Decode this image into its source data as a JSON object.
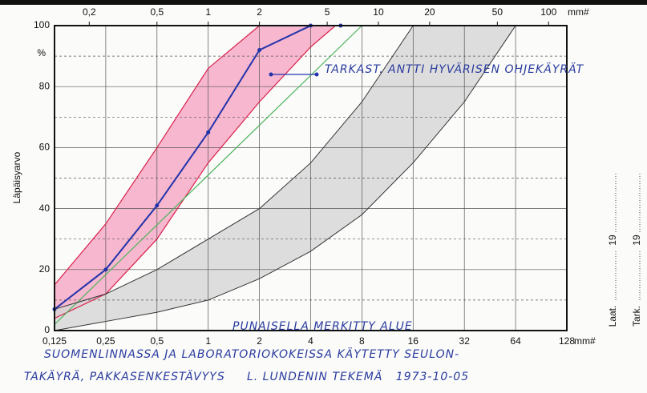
{
  "chart_data": {
    "type": "line",
    "y_label": "Läpäisyarvo",
    "y_unit": "%",
    "xlog": true,
    "xlim": [
      0.125,
      128
    ],
    "ylim": [
      0,
      100
    ],
    "xticks": [
      {
        "value": 0.125,
        "label": "0,125"
      },
      {
        "value": 0.25,
        "label": "0,25"
      },
      {
        "value": 0.5,
        "label": "0,5"
      },
      1,
      2,
      4,
      8,
      16,
      32,
      64,
      128
    ],
    "x_unit": "mm#",
    "x2ticks": [
      {
        "value": 0.2,
        "label": "0,2"
      },
      {
        "value": 0.5,
        "label": "0,5"
      },
      1,
      2,
      5,
      10,
      20,
      50,
      100
    ],
    "x2_unit": "mm#",
    "yticks": [
      0,
      20,
      40,
      60,
      80,
      100
    ],
    "ygrid": [
      10,
      30,
      50,
      70,
      90
    ],
    "grid": true,
    "series": [
      {
        "color": "#2233aa",
        "width": 2,
        "markers": true,
        "x": [
          0.125,
          0.25,
          0.5,
          1,
          2,
          4,
          6
        ],
        "values": [
          7,
          20,
          41,
          65,
          92,
          100,
          100
        ]
      },
      {
        "color": "#d8204a",
        "width": 1.2,
        "fill": "#f6a6c4",
        "x": [
          0.125,
          0.25,
          0.5,
          1,
          2
        ],
        "values": [
          15,
          35,
          60,
          86,
          100
        ]
      },
      {
        "color": "#d8204a",
        "width": 1.2,
        "x": [
          0.125,
          0.25,
          0.5,
          1,
          2,
          4,
          5.6
        ],
        "values": [
          4,
          12,
          30,
          55,
          75,
          93,
          100
        ]
      },
      {
        "color": "#4cb35a",
        "width": 1.2,
        "x": [
          0.125,
          8
        ],
        "values": [
          2,
          100
        ]
      },
      {
        "color": "#333333",
        "width": 1,
        "fill": "#d6d6d6",
        "x": [
          0.125,
          0.25,
          0.5,
          1,
          2,
          4,
          8,
          16
        ],
        "values": [
          7,
          12,
          20,
          30,
          40,
          55,
          75,
          100
        ]
      },
      {
        "color": "#333333",
        "width": 1,
        "x": [
          0.125,
          0.25,
          0.5,
          1,
          2,
          4,
          8,
          16,
          32,
          64
        ],
        "values": [
          0,
          3,
          6,
          10,
          17,
          26,
          38,
          55,
          75,
          100
        ]
      }
    ],
    "annotations": [
      "TARKAST. ANTTI HYVÄRISEN OHJEKÄYRÄT",
      "PUNAISELLA MERKITTY ALUE"
    ],
    "footer": [
      "SUOMENLINNASSA JA LABORATORIOKOKEISSA KÄYTETTY SEULON-",
      "TAKÄYRÄ, PAKKASENKESTÄVYYS     L. LUNDENIN TEKEMÄ   1973-10-05"
    ],
    "signatures": [
      {
        "label": "Laat.",
        "year": "19"
      },
      {
        "label": "Tark.",
        "year": "19"
      }
    ]
  }
}
